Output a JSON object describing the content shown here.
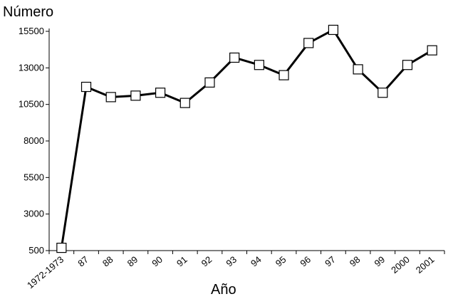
{
  "chart_data": {
    "type": "line",
    "title": "",
    "ylabel": "Número",
    "xlabel": "Año",
    "ylim": [
      500,
      15500
    ],
    "yticks": [
      500,
      3000,
      5500,
      8000,
      10500,
      13000,
      15500
    ],
    "categories": [
      "1972-1973",
      "87",
      "88",
      "89",
      "90",
      "91",
      "92",
      "93",
      "94",
      "95",
      "96",
      "97",
      "98",
      "99",
      "2000",
      "2001"
    ],
    "values": [
      690,
      11700,
      11000,
      11100,
      11300,
      10600,
      12000,
      13700,
      13200,
      12500,
      14700,
      15600,
      12900,
      11300,
      13200,
      14200
    ],
    "marker": "square",
    "line_color": "#000000",
    "grid": false,
    "legend": "none"
  }
}
